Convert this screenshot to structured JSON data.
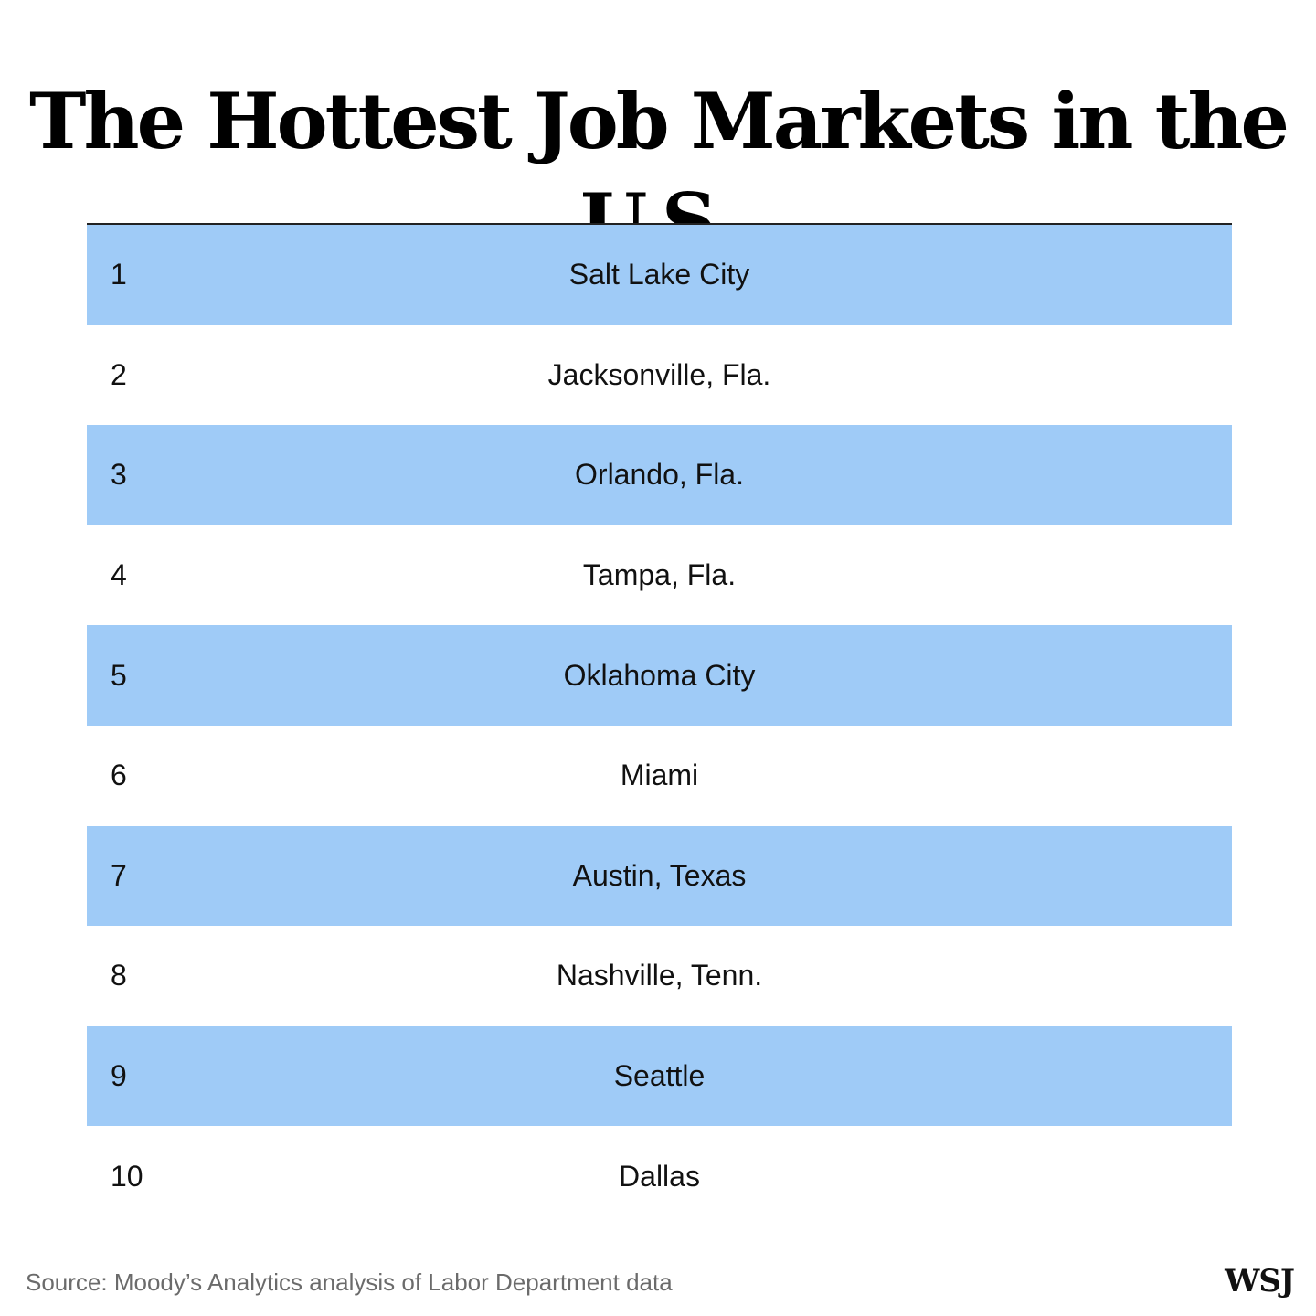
{
  "chart_data": {
    "type": "table",
    "title": "The Hottest Job Markets in the U.S.",
    "rows": [
      {
        "rank": "1",
        "city": "Salt Lake City"
      },
      {
        "rank": "2",
        "city": "Jacksonville, Fla."
      },
      {
        "rank": "3",
        "city": "Orlando, Fla."
      },
      {
        "rank": "4",
        "city": "Tampa, Fla."
      },
      {
        "rank": "5",
        "city": "Oklahoma City"
      },
      {
        "rank": "6",
        "city": "Miami"
      },
      {
        "rank": "7",
        "city": "Austin, Texas"
      },
      {
        "rank": "8",
        "city": "Nashville, Tenn."
      },
      {
        "rank": "9",
        "city": "Seattle"
      },
      {
        "rank": "10",
        "city": "Dallas"
      }
    ],
    "source": "Source: Moody’s Analytics analysis of Labor Department data",
    "logo": "WSJ"
  },
  "colors": {
    "row_shade": "#9fcbf7",
    "text": "#111111",
    "source_text": "#6b6b6b"
  }
}
